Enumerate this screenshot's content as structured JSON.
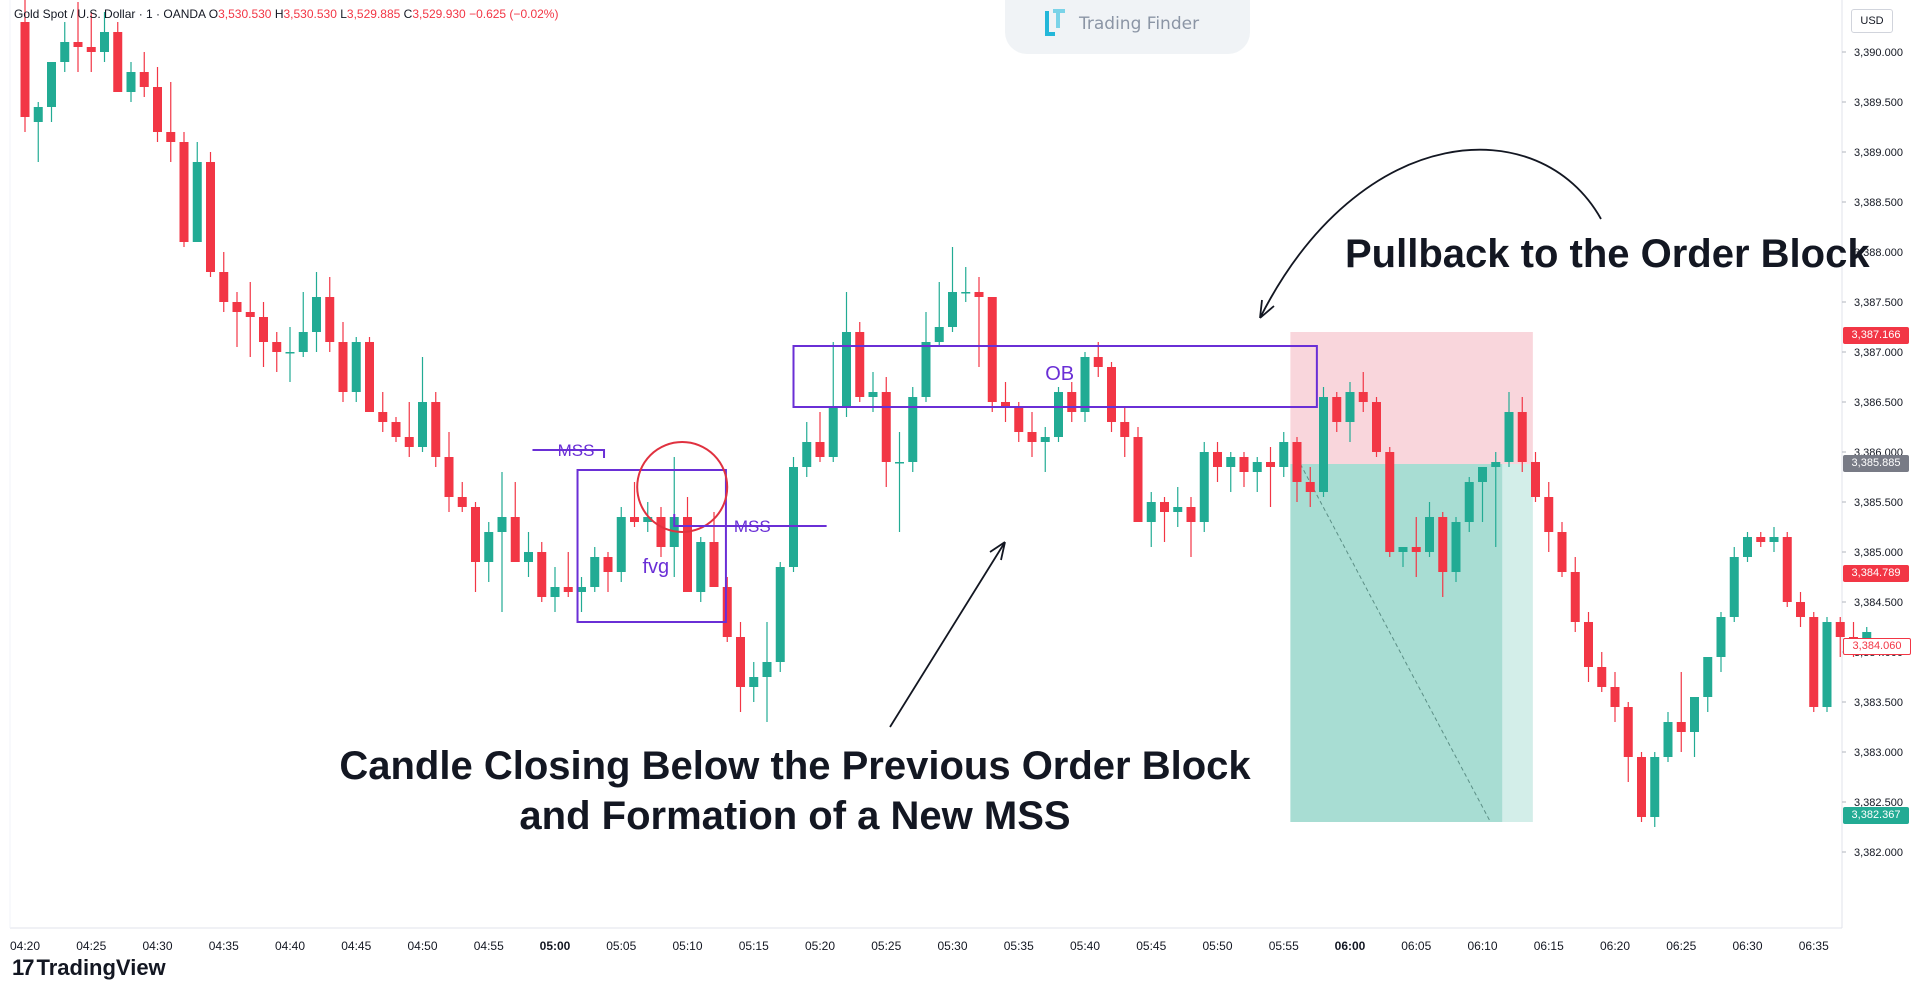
{
  "header": {
    "symbol": "Gold Spot / U.S. Dollar · 1 · OANDA",
    "open_label": "O",
    "open": "3,530.530",
    "high_label": "H",
    "high": "3,530.530",
    "low_label": "L",
    "low": "3,529.885",
    "close_label": "C",
    "close": "3,529.930",
    "change": "−0.625 (−0.02%)"
  },
  "watermark": {
    "text": "Trading Finder"
  },
  "footer": {
    "brand": "TradingView"
  },
  "currency": "USD",
  "annotations": {
    "pullback": "Pullback to the Order Block",
    "candle_line1": "Candle Closing Below the Previous Order Block",
    "candle_line2": "and Formation of a New MSS",
    "ob": "OB",
    "mss1": "MSS",
    "mss2": "MSS",
    "fvg": "fvg"
  },
  "price_tags": [
    {
      "text": "3,387.166",
      "color": "#f23645",
      "price": 3387.166,
      "style": "fill"
    },
    {
      "text": "3,385.885",
      "color": "#787b86",
      "price": 3385.885,
      "style": "fill"
    },
    {
      "text": "3,384.789",
      "color": "#f23645",
      "price": 3384.789,
      "style": "fill"
    },
    {
      "text": "3,384.060",
      "color": "#f23645",
      "price": 3384.06,
      "style": "outline"
    },
    {
      "text": "3,382.367",
      "color": "#22ab94",
      "price": 3382.367,
      "style": "fill"
    }
  ],
  "colors": {
    "up": "#22ab94",
    "down": "#f23645",
    "annotation": "#6a2fd6",
    "circle": "#e0313f",
    "stop_zone": "#f9d6dc",
    "target_zone": "#a8ddd3"
  },
  "chart_data": {
    "type": "candlestick",
    "title": "Gold Spot / U.S. Dollar · 1 · OANDA",
    "ylim": [
      3381.7,
      3390.45
    ],
    "y_ticks": [
      3382.0,
      3382.5,
      3383.0,
      3383.5,
      3384.0,
      3384.5,
      3385.0,
      3385.5,
      3386.0,
      3386.5,
      3387.0,
      3387.5,
      3388.0,
      3388.5,
      3389.0,
      3389.5,
      3390.0
    ],
    "y_tick_labels": [
      "3,382.000",
      "3,382.500",
      "3,383.000",
      "3,383.500",
      "3,384.000",
      "3,384.500",
      "3,385.000",
      "3,385.500",
      "3,386.000",
      "3,386.500",
      "3,387.000",
      "3,387.500",
      "3,388.000",
      "3,388.500",
      "3,389.000",
      "3,389.500",
      "3,390.000"
    ],
    "x_ticks": [
      {
        "label": "04:20",
        "index": 0
      },
      {
        "label": "04:25",
        "index": 5
      },
      {
        "label": "04:30",
        "index": 10
      },
      {
        "label": "04:35",
        "index": 15
      },
      {
        "label": "04:40",
        "index": 20
      },
      {
        "label": "04:45",
        "index": 25
      },
      {
        "label": "04:50",
        "index": 30
      },
      {
        "label": "04:55",
        "index": 35
      },
      {
        "label": "05:00",
        "index": 40,
        "bold": true
      },
      {
        "label": "05:05",
        "index": 45
      },
      {
        "label": "05:10",
        "index": 50
      },
      {
        "label": "05:15",
        "index": 55
      },
      {
        "label": "05:20",
        "index": 60
      },
      {
        "label": "05:25",
        "index": 65
      },
      {
        "label": "05:30",
        "index": 70
      },
      {
        "label": "05:35",
        "index": 75
      },
      {
        "label": "05:40",
        "index": 80
      },
      {
        "label": "05:45",
        "index": 85
      },
      {
        "label": "05:50",
        "index": 90
      },
      {
        "label": "05:55",
        "index": 95
      },
      {
        "label": "06:00",
        "index": 100,
        "bold": true
      },
      {
        "label": "06:05",
        "index": 105
      },
      {
        "label": "06:10",
        "index": 110
      },
      {
        "label": "06:15",
        "index": 115
      },
      {
        "label": "06:20",
        "index": 120
      },
      {
        "label": "06:25",
        "index": 125
      },
      {
        "label": "06:30",
        "index": 130
      },
      {
        "label": "06:35",
        "index": 135
      }
    ],
    "candles": [
      [
        3390.3,
        3390.6,
        3389.2,
        3389.35
      ],
      [
        3389.3,
        3389.5,
        3388.9,
        3389.45
      ],
      [
        3389.45,
        3389.9,
        3389.3,
        3389.9
      ],
      [
        3389.9,
        3390.3,
        3389.8,
        3390.1
      ],
      [
        3390.1,
        3390.5,
        3389.8,
        3390.05
      ],
      [
        3390.05,
        3390.4,
        3389.8,
        3390.0
      ],
      [
        3390.0,
        3390.4,
        3389.9,
        3390.2
      ],
      [
        3390.2,
        3390.3,
        3389.6,
        3389.6
      ],
      [
        3389.6,
        3389.9,
        3389.5,
        3389.8
      ],
      [
        3389.8,
        3390.0,
        3389.55,
        3389.65
      ],
      [
        3389.65,
        3389.85,
        3389.1,
        3389.2
      ],
      [
        3389.2,
        3389.7,
        3388.9,
        3389.1
      ],
      [
        3389.1,
        3389.2,
        3388.05,
        3388.1
      ],
      [
        3388.1,
        3389.1,
        3388.1,
        3388.9
      ],
      [
        3388.9,
        3389.0,
        3387.75,
        3387.8
      ],
      [
        3387.8,
        3388.0,
        3387.4,
        3387.5
      ],
      [
        3387.5,
        3387.6,
        3387.05,
        3387.4
      ],
      [
        3387.4,
        3387.7,
        3386.95,
        3387.35
      ],
      [
        3387.35,
        3387.5,
        3386.85,
        3387.1
      ],
      [
        3387.1,
        3387.2,
        3386.8,
        3387.0
      ],
      [
        3387.0,
        3387.25,
        3386.7,
        3387.0
      ],
      [
        3387.0,
        3387.6,
        3386.95,
        3387.2
      ],
      [
        3387.2,
        3387.8,
        3387.0,
        3387.55
      ],
      [
        3387.55,
        3387.75,
        3387.0,
        3387.1
      ],
      [
        3387.1,
        3387.3,
        3386.5,
        3386.6
      ],
      [
        3386.6,
        3387.15,
        3386.5,
        3387.1
      ],
      [
        3387.1,
        3387.15,
        3386.4,
        3386.4
      ],
      [
        3386.4,
        3386.6,
        3386.2,
        3386.3
      ],
      [
        3386.3,
        3386.35,
        3386.1,
        3386.15
      ],
      [
        3386.15,
        3386.5,
        3385.95,
        3386.05
      ],
      [
        3386.05,
        3386.95,
        3386.0,
        3386.5
      ],
      [
        3386.5,
        3386.6,
        3385.85,
        3385.95
      ],
      [
        3385.95,
        3386.2,
        3385.4,
        3385.55
      ],
      [
        3385.55,
        3385.7,
        3385.4,
        3385.45
      ],
      [
        3385.45,
        3385.5,
        3384.6,
        3384.9
      ],
      [
        3384.9,
        3385.3,
        3384.7,
        3385.2
      ],
      [
        3385.2,
        3385.8,
        3384.4,
        3385.35
      ],
      [
        3385.35,
        3385.7,
        3384.9,
        3384.9
      ],
      [
        3384.9,
        3385.2,
        3384.75,
        3385.0
      ],
      [
        3385.0,
        3385.1,
        3384.5,
        3384.55
      ],
      [
        3384.55,
        3384.85,
        3384.4,
        3384.65
      ],
      [
        3384.65,
        3385.0,
        3384.55,
        3384.6
      ],
      [
        3384.6,
        3384.75,
        3384.4,
        3384.65
      ],
      [
        3384.65,
        3385.05,
        3384.6,
        3384.95
      ],
      [
        3384.95,
        3385.0,
        3384.6,
        3384.8
      ],
      [
        3384.8,
        3385.45,
        3384.7,
        3385.35
      ],
      [
        3385.35,
        3385.7,
        3385.25,
        3385.3
      ],
      [
        3385.3,
        3385.5,
        3385.2,
        3385.35
      ],
      [
        3385.35,
        3385.45,
        3384.95,
        3385.05
      ],
      [
        3385.05,
        3385.95,
        3384.75,
        3385.35
      ],
      [
        3385.35,
        3385.55,
        3384.6,
        3384.6
      ],
      [
        3384.6,
        3385.15,
        3384.5,
        3385.1
      ],
      [
        3385.1,
        3385.4,
        3384.65,
        3384.65
      ],
      [
        3384.65,
        3384.75,
        3384.1,
        3384.15
      ],
      [
        3384.15,
        3384.3,
        3383.4,
        3383.65
      ],
      [
        3383.65,
        3383.9,
        3383.5,
        3383.75
      ],
      [
        3383.75,
        3384.3,
        3383.3,
        3383.9
      ],
      [
        3383.9,
        3384.9,
        3383.8,
        3384.85
      ],
      [
        3384.85,
        3385.95,
        3384.8,
        3385.85
      ],
      [
        3385.85,
        3386.3,
        3385.75,
        3386.1
      ],
      [
        3386.1,
        3386.4,
        3385.9,
        3385.95
      ],
      [
        3385.95,
        3387.1,
        3385.9,
        3386.45
      ],
      [
        3386.45,
        3387.6,
        3386.35,
        3387.2
      ],
      [
        3387.2,
        3387.3,
        3386.5,
        3386.55
      ],
      [
        3386.55,
        3386.8,
        3386.4,
        3386.6
      ],
      [
        3386.6,
        3386.75,
        3385.65,
        3385.9
      ],
      [
        3385.9,
        3386.2,
        3385.2,
        3385.9
      ],
      [
        3385.9,
        3386.65,
        3385.8,
        3386.55
      ],
      [
        3386.55,
        3387.4,
        3386.5,
        3387.1
      ],
      [
        3387.1,
        3387.7,
        3387.05,
        3387.25
      ],
      [
        3387.25,
        3388.05,
        3387.2,
        3387.6
      ],
      [
        3387.6,
        3387.85,
        3387.5,
        3387.6
      ],
      [
        3387.6,
        3387.75,
        3386.85,
        3387.55
      ],
      [
        3387.55,
        3387.55,
        3386.4,
        3386.5
      ],
      [
        3386.5,
        3386.7,
        3386.3,
        3386.45
      ],
      [
        3386.45,
        3386.5,
        3386.1,
        3386.2
      ],
      [
        3386.2,
        3386.4,
        3385.95,
        3386.1
      ],
      [
        3386.1,
        3386.25,
        3385.8,
        3386.15
      ],
      [
        3386.15,
        3386.65,
        3386.1,
        3386.6
      ],
      [
        3386.6,
        3386.7,
        3386.3,
        3386.4
      ],
      [
        3386.4,
        3387.0,
        3386.3,
        3386.95
      ],
      [
        3386.95,
        3387.1,
        3386.75,
        3386.85
      ],
      [
        3386.85,
        3386.9,
        3386.2,
        3386.3
      ],
      [
        3386.3,
        3386.45,
        3385.95,
        3386.15
      ],
      [
        3386.15,
        3386.25,
        3385.3,
        3385.3
      ],
      [
        3385.3,
        3385.6,
        3385.05,
        3385.5
      ],
      [
        3385.5,
        3385.55,
        3385.1,
        3385.4
      ],
      [
        3385.4,
        3385.65,
        3385.25,
        3385.45
      ],
      [
        3385.45,
        3385.55,
        3384.95,
        3385.3
      ],
      [
        3385.3,
        3386.1,
        3385.2,
        3386.0
      ],
      [
        3386.0,
        3386.1,
        3385.7,
        3385.85
      ],
      [
        3385.85,
        3386.0,
        3385.6,
        3385.95
      ],
      [
        3385.95,
        3386.0,
        3385.65,
        3385.8
      ],
      [
        3385.8,
        3385.95,
        3385.6,
        3385.9
      ],
      [
        3385.9,
        3386.05,
        3385.45,
        3385.85
      ],
      [
        3385.85,
        3386.2,
        3385.75,
        3386.1
      ],
      [
        3386.1,
        3386.15,
        3385.5,
        3385.7
      ],
      [
        3385.7,
        3385.85,
        3385.45,
        3385.6
      ],
      [
        3385.6,
        3386.65,
        3385.55,
        3386.55
      ],
      [
        3386.55,
        3386.6,
        3386.2,
        3386.3
      ],
      [
        3386.3,
        3386.7,
        3386.1,
        3386.6
      ],
      [
        3386.6,
        3386.8,
        3386.4,
        3386.5
      ],
      [
        3386.5,
        3386.55,
        3385.95,
        3386.0
      ],
      [
        3386.0,
        3386.05,
        3384.95,
        3385.0
      ],
      [
        3385.0,
        3385.05,
        3384.85,
        3385.05
      ],
      [
        3385.05,
        3385.35,
        3384.75,
        3385.0
      ],
      [
        3385.0,
        3385.5,
        3384.95,
        3385.35
      ],
      [
        3385.35,
        3385.4,
        3384.55,
        3384.8
      ],
      [
        3384.8,
        3385.35,
        3384.7,
        3385.3
      ],
      [
        3385.3,
        3385.75,
        3385.2,
        3385.7
      ],
      [
        3385.7,
        3385.85,
        3385.3,
        3385.85
      ],
      [
        3385.85,
        3386.0,
        3385.05,
        3385.9
      ],
      [
        3385.9,
        3386.6,
        3385.85,
        3386.4
      ],
      [
        3386.4,
        3386.55,
        3385.8,
        3385.9
      ],
      [
        3385.9,
        3386.0,
        3385.5,
        3385.55
      ],
      [
        3385.55,
        3385.7,
        3385.0,
        3385.2
      ],
      [
        3385.2,
        3385.3,
        3384.75,
        3384.8
      ],
      [
        3384.8,
        3384.95,
        3384.2,
        3384.3
      ],
      [
        3384.3,
        3384.4,
        3383.7,
        3383.85
      ],
      [
        3383.85,
        3384.0,
        3383.6,
        3383.65
      ],
      [
        3383.65,
        3383.8,
        3383.3,
        3383.45
      ],
      [
        3383.45,
        3383.5,
        3382.7,
        3382.95
      ],
      [
        3382.95,
        3383.0,
        3382.3,
        3382.35
      ],
      [
        3382.35,
        3383.0,
        3382.25,
        3382.95
      ],
      [
        3382.95,
        3383.4,
        3382.9,
        3383.3
      ],
      [
        3383.3,
        3383.8,
        3383.0,
        3383.2
      ],
      [
        3383.2,
        3383.5,
        3382.95,
        3383.55
      ],
      [
        3383.55,
        3383.95,
        3383.4,
        3383.95
      ],
      [
        3383.95,
        3384.4,
        3383.8,
        3384.35
      ],
      [
        3384.35,
        3385.05,
        3384.3,
        3384.95
      ],
      [
        3384.95,
        3385.2,
        3384.9,
        3385.15
      ],
      [
        3385.15,
        3385.2,
        3385.05,
        3385.1
      ],
      [
        3385.1,
        3385.25,
        3385.0,
        3385.15
      ],
      [
        3385.15,
        3385.2,
        3384.45,
        3384.5
      ],
      [
        3384.5,
        3384.6,
        3384.25,
        3384.35
      ],
      [
        3384.35,
        3384.4,
        3383.4,
        3383.45
      ],
      [
        3383.45,
        3384.35,
        3383.4,
        3384.3
      ],
      [
        3384.3,
        3384.35,
        3383.95,
        3384.15
      ],
      [
        3384.15,
        3384.3,
        3383.95,
        3384.05
      ],
      [
        3384.05,
        3384.25,
        3384.0,
        3384.2
      ]
    ]
  }
}
